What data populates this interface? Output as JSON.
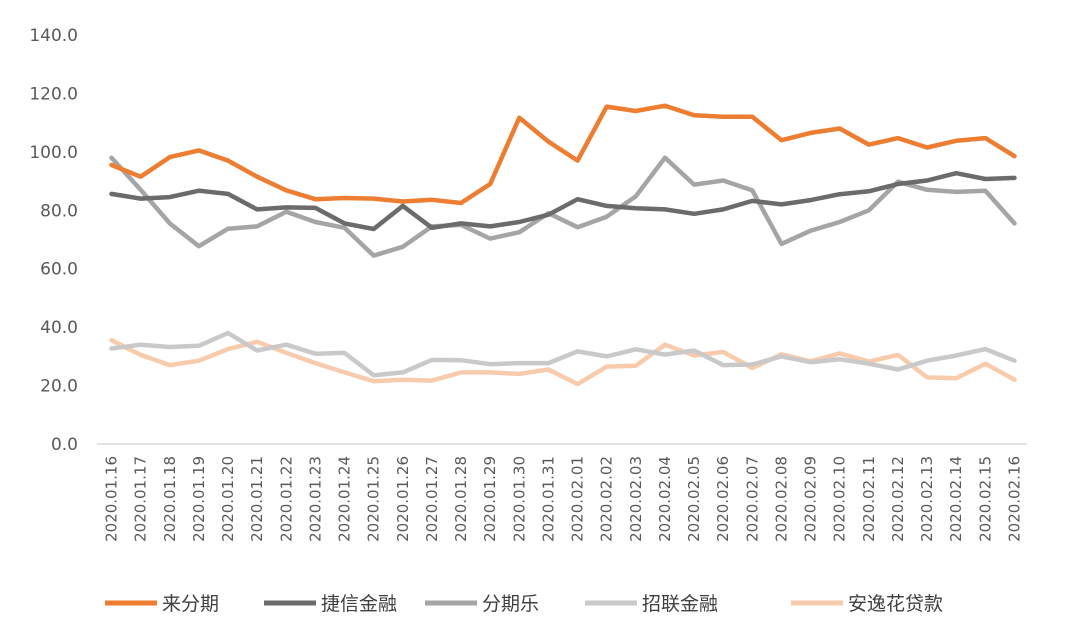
{
  "chart_data": {
    "type": "line",
    "title": "",
    "xlabel": "",
    "ylabel": "",
    "ylim": [
      0,
      140
    ],
    "yticks": [
      "0.0",
      "20.0",
      "40.0",
      "60.0",
      "80.0",
      "100.0",
      "120.0",
      "140.0"
    ],
    "grid": false,
    "legend_position": "bottom",
    "categories": [
      "2020.01.16",
      "2020.01.17",
      "2020.01.18",
      "2020.01.19",
      "2020.01.20",
      "2020.01.21",
      "2020.01.22",
      "2020.01.23",
      "2020.01.24",
      "2020.01.25",
      "2020.01.26",
      "2020.01.27",
      "2020.01.28",
      "2020.01.29",
      "2020.01.30",
      "2020.01.31",
      "2020.02.01",
      "2020.02.02",
      "2020.02.03",
      "2020.02.04",
      "2020.02.05",
      "2020.02.06",
      "2020.02.07",
      "2020.02.08",
      "2020.02.09",
      "2020.02.10",
      "2020.02.11",
      "2020.02.12",
      "2020.02.13",
      "2020.02.14",
      "2020.02.15",
      "2020.02.16"
    ],
    "series": [
      {
        "name": "来分期",
        "color": "#ED7D31",
        "values": [
          95.5,
          91.5,
          98.2,
          100.5,
          97.0,
          91.5,
          86.8,
          83.8,
          84.2,
          84.0,
          83.0,
          83.6,
          82.5,
          89.0,
          111.7,
          103.5,
          97.0,
          115.5,
          114.0,
          115.8,
          112.5,
          112.0,
          112.0,
          104.0,
          106.5,
          108.0,
          102.5,
          104.7,
          101.5,
          103.8,
          104.7,
          98.5
        ]
      },
      {
        "name": "捷信金融",
        "color": "#6B6B6B",
        "values": [
          85.6,
          84.0,
          84.5,
          86.7,
          85.6,
          80.3,
          81.0,
          80.8,
          75.5,
          73.6,
          81.5,
          74.0,
          75.5,
          74.5,
          76.0,
          78.5,
          83.8,
          81.5,
          80.7,
          80.3,
          78.8,
          80.3,
          83.2,
          82.0,
          83.5,
          85.5,
          86.5,
          89.0,
          90.2,
          92.7,
          90.7,
          91.1
        ]
      },
      {
        "name": "分期乐",
        "color": "#A5A5A5",
        "values": [
          98.0,
          87.0,
          75.5,
          67.7,
          73.7,
          74.5,
          79.5,
          76.0,
          74.0,
          64.5,
          67.5,
          74.5,
          75.0,
          70.3,
          72.5,
          79.0,
          74.2,
          77.8,
          84.8,
          98.0,
          88.8,
          90.2,
          86.8,
          68.5,
          73.0,
          76.0,
          80.0,
          89.8,
          87.0,
          86.3,
          86.7,
          75.5
        ]
      },
      {
        "name": "招联金融",
        "color": "#C9C9C9",
        "values": [
          32.7,
          34.0,
          33.2,
          33.6,
          38.0,
          32.0,
          34.0,
          30.9,
          31.2,
          23.5,
          24.5,
          28.8,
          28.7,
          27.3,
          27.7,
          27.7,
          31.7,
          30.0,
          32.4,
          30.6,
          32.0,
          27.0,
          27.2,
          30.0,
          28.0,
          29.0,
          27.5,
          25.5,
          28.5,
          30.3,
          32.5,
          28.5
        ]
      },
      {
        "name": "安逸花贷款",
        "color": "#F8CBAD",
        "values": [
          35.5,
          30.5,
          27.0,
          28.5,
          32.5,
          35.0,
          31.2,
          27.7,
          24.5,
          21.5,
          22.0,
          21.7,
          24.5,
          24.5,
          24.0,
          25.5,
          20.5,
          26.5,
          26.8,
          34.0,
          30.3,
          31.5,
          26.0,
          30.7,
          28.3,
          31.0,
          28.2,
          30.5,
          22.8,
          22.5,
          27.5,
          22.0
        ]
      }
    ]
  }
}
